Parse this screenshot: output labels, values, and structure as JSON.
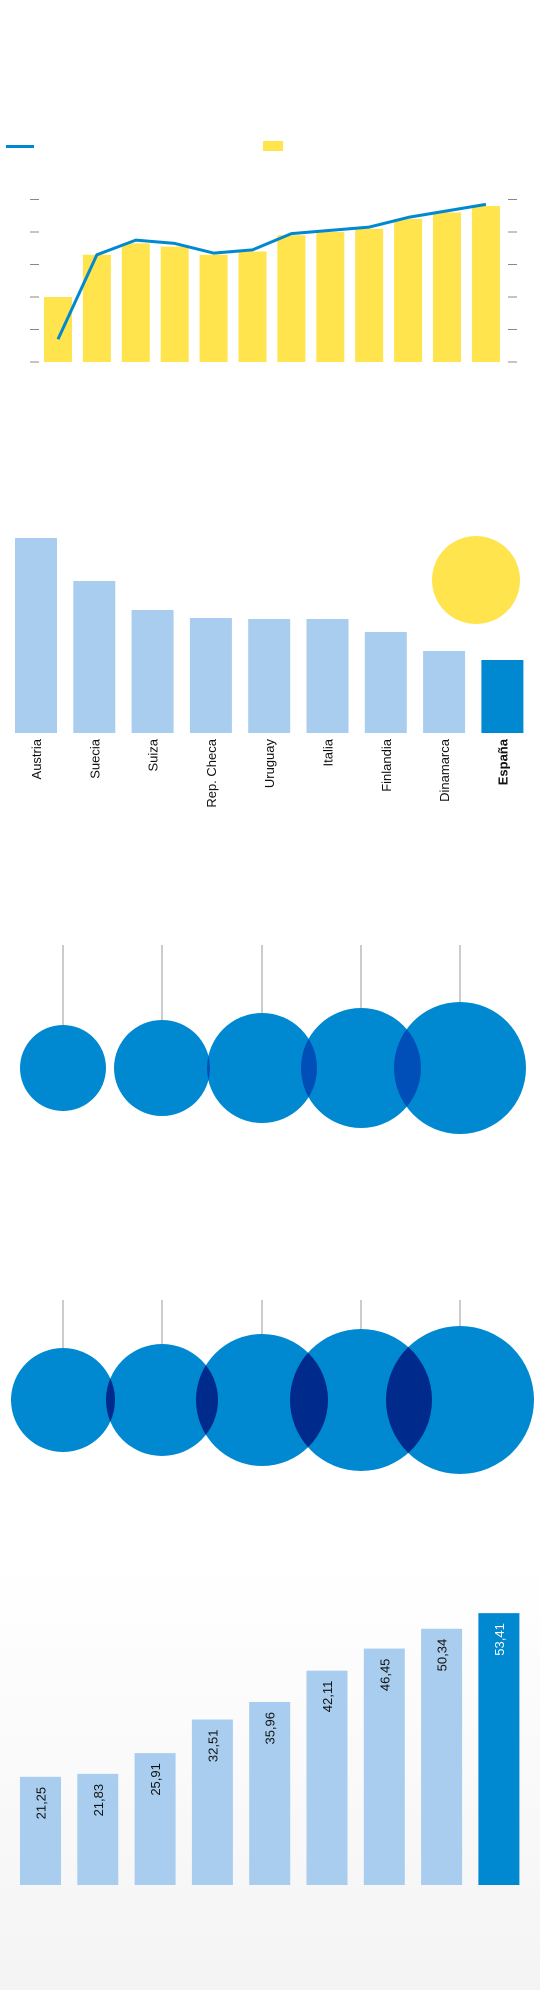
{
  "colors": {
    "yellow": "#ffe44d",
    "blue": "#0088d1",
    "light_blue": "#a8cdee",
    "dark_overlap": "#002a8c",
    "mid_overlap": "#004fb8",
    "axis_gray": "#888888"
  },
  "chart_data": [
    {
      "type": "bar",
      "series": [
        {
          "values": [
            2.0,
            3.3,
            3.65,
            3.55,
            3.3,
            3.4,
            3.9,
            4.0,
            4.1,
            4.4,
            4.6,
            4.8
          ]
        },
        {
          "values": [
            0.7,
            3.3,
            3.75,
            3.65,
            3.35,
            3.45,
            3.95,
            4.05,
            4.15,
            4.45,
            4.65,
            4.85
          ]
        }
      ],
      "ylim": [
        0,
        5
      ],
      "grid": false
    },
    {
      "type": "bar",
      "categories": [
        "Austria",
        "Suecia",
        "Suiza",
        "Rep. Checa",
        "Uruguay",
        "Italia",
        "Finlandia",
        "Dinamarca",
        "España"
      ],
      "values": [
        195,
        152,
        123,
        115,
        114,
        114,
        101,
        82,
        73
      ],
      "highlight": "España"
    },
    {
      "type": "scatter",
      "values": [
        43,
        48,
        55,
        60,
        66
      ]
    },
    {
      "type": "scatter",
      "values": [
        52,
        56,
        66,
        71,
        74
      ]
    },
    {
      "type": "bar",
      "values": [
        21.25,
        21.83,
        25.91,
        32.51,
        35.96,
        42.11,
        46.45,
        50.34,
        53.41
      ],
      "labels": [
        "21,25",
        "21,83",
        "25,91",
        "32,51",
        "35,96",
        "42,11",
        "46,45",
        "50,34",
        "53,41"
      ],
      "ylim": [
        0,
        60
      ],
      "highlight_index": 8
    }
  ]
}
